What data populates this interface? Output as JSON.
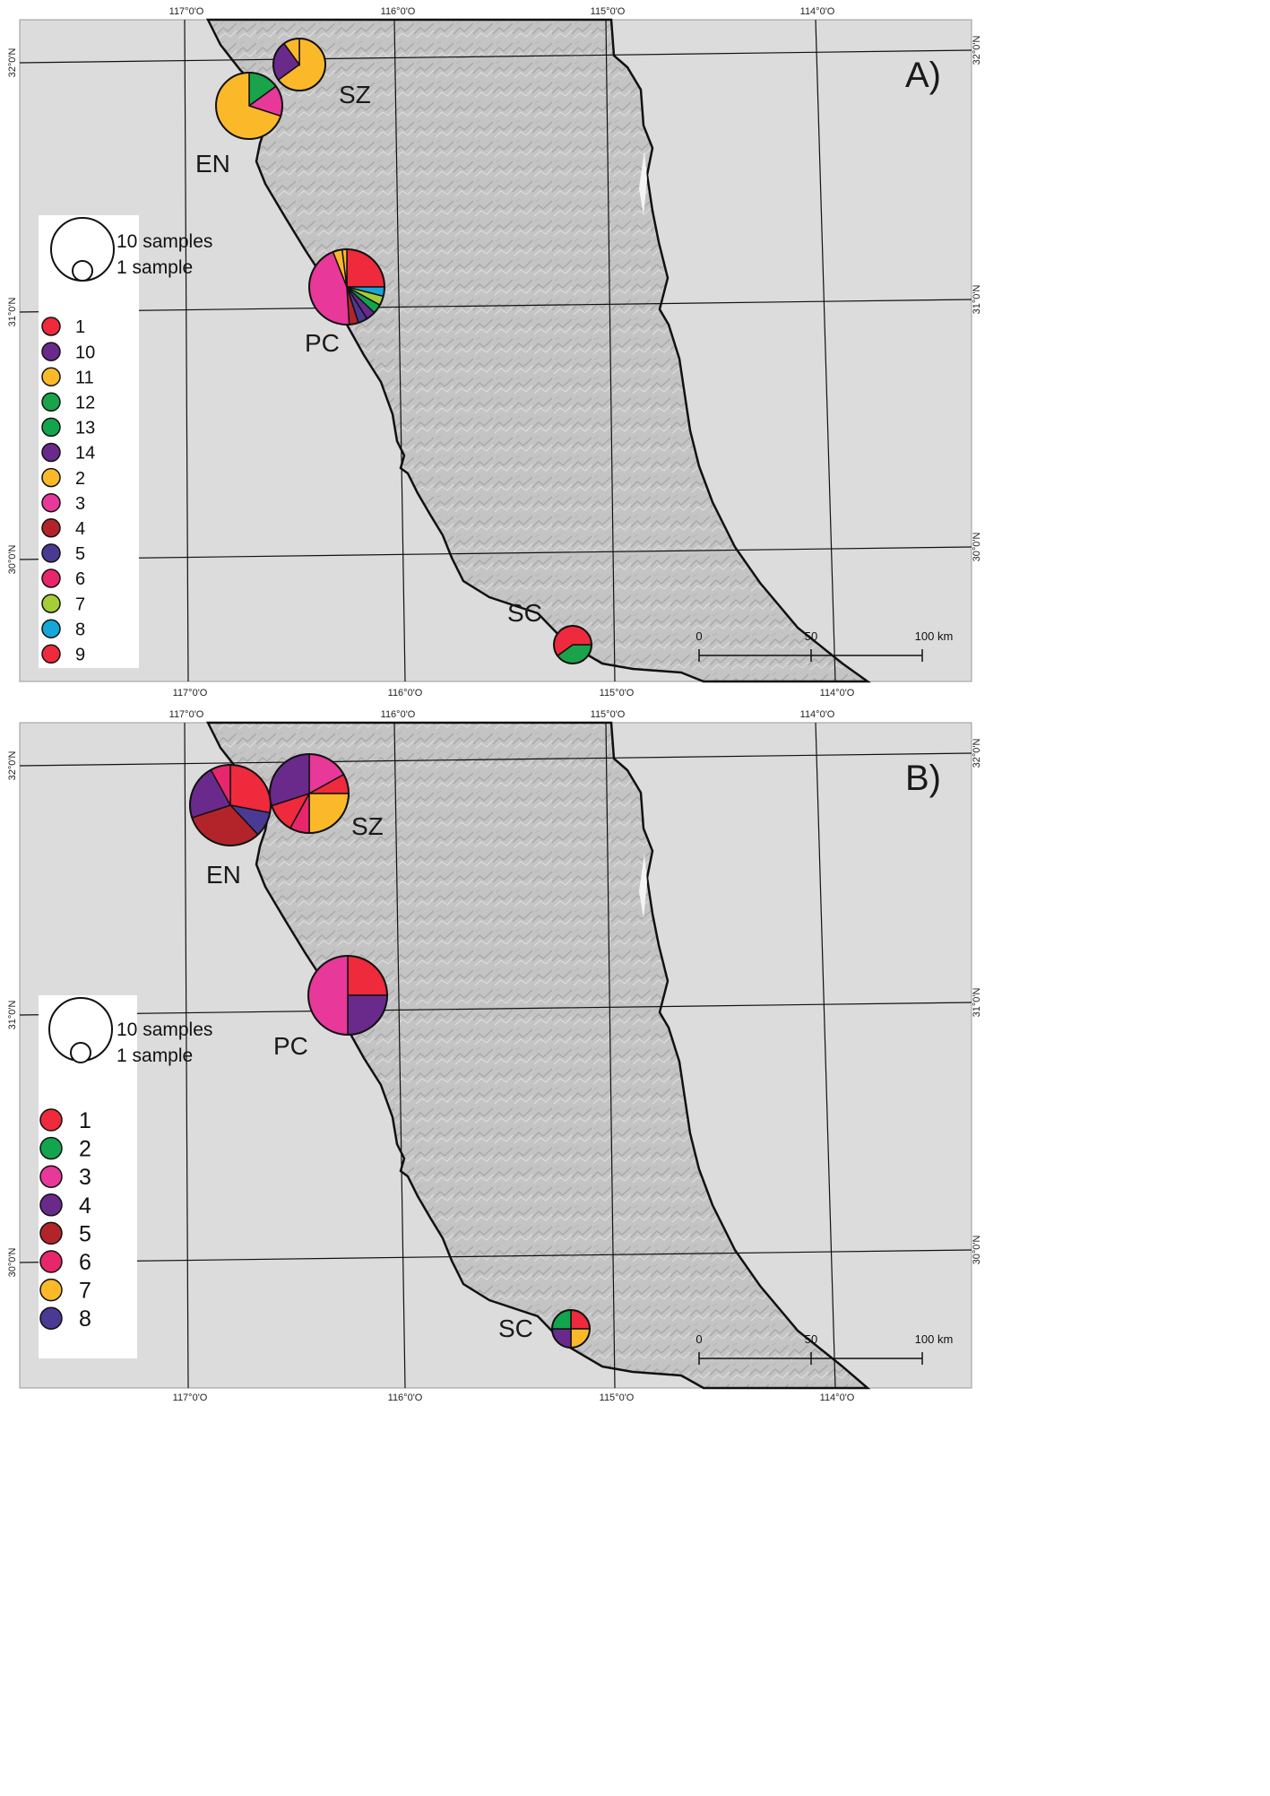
{
  "panels": [
    {
      "id": "A",
      "panel_label": "A)",
      "top_lon_labels": [
        "117°0'O",
        "116°0'O",
        "115°0'O",
        "114°0'O"
      ],
      "bottom_lon_labels": [
        "117°0'O",
        "116°0'O",
        "115°0'O",
        "114°0'O"
      ],
      "lat_labels": [
        "32°0'N",
        "31°0'N",
        "30°0'N"
      ],
      "size_legend": {
        "large": "10 samples",
        "small": "1 sample"
      },
      "legend": [
        {
          "label": "1",
          "color": "#ee2a3c"
        },
        {
          "label": "10",
          "color": "#6a2a8c"
        },
        {
          "label": "11",
          "color": "#fbb92a"
        },
        {
          "label": "12",
          "color": "#1aa34a"
        },
        {
          "label": "13",
          "color": "#12a54e"
        },
        {
          "label": "14",
          "color": "#6a2a8c"
        },
        {
          "label": "2",
          "color": "#fbb92a"
        },
        {
          "label": "3",
          "color": "#e8389a"
        },
        {
          "label": "4",
          "color": "#b2242a"
        },
        {
          "label": "5",
          "color": "#4a3a94"
        },
        {
          "label": "6",
          "color": "#e8266c"
        },
        {
          "label": "7",
          "color": "#a6cc38"
        },
        {
          "label": "8",
          "color": "#14a7d8"
        },
        {
          "label": "9",
          "color": "#ee2a3c"
        }
      ],
      "sites": [
        {
          "label": "SZ",
          "slices": [
            {
              "haplotype": "11",
              "share": 0.65
            },
            {
              "haplotype": "10",
              "share": 0.25
            },
            {
              "haplotype": "2",
              "share": 0.1
            }
          ]
        },
        {
          "label": "EN",
          "slices": [
            {
              "haplotype": "12",
              "share": 0.15
            },
            {
              "haplotype": "3",
              "share": 0.15
            },
            {
              "haplotype": "11",
              "share": 0.7
            }
          ]
        },
        {
          "label": "PC",
          "slices": [
            {
              "haplotype": "1",
              "share": 0.25
            },
            {
              "haplotype": "8",
              "share": 0.04
            },
            {
              "haplotype": "7",
              "share": 0.04
            },
            {
              "haplotype": "13",
              "share": 0.04
            },
            {
              "haplotype": "14",
              "share": 0.04
            },
            {
              "haplotype": "5",
              "share": 0.04
            },
            {
              "haplotype": "4",
              "share": 0.04
            },
            {
              "haplotype": "3",
              "share": 0.45
            },
            {
              "haplotype": "2",
              "share": 0.04
            },
            {
              "haplotype": "11",
              "share": 0.02
            }
          ]
        },
        {
          "label": "SC",
          "slices": [
            {
              "haplotype": "12",
              "share": 0.4
            },
            {
              "haplotype": "1",
              "share": 0.6
            }
          ]
        }
      ],
      "scale_bar": {
        "labels": [
          "0",
          "50",
          "100 km"
        ]
      }
    },
    {
      "id": "B",
      "panel_label": "B)",
      "top_lon_labels": [
        "117°0'O",
        "116°0'O",
        "115°0'O",
        "114°0'O"
      ],
      "bottom_lon_labels": [
        "117°0'O",
        "116°0'O",
        "115°0'O",
        "114°0'O"
      ],
      "lat_labels": [
        "32°0'N",
        "31°0'N",
        "30°0'N"
      ],
      "size_legend": {
        "large": "10 samples",
        "small": "1 sample"
      },
      "legend": [
        {
          "label": "1",
          "color": "#ee2a3c"
        },
        {
          "label": "2",
          "color": "#12a54e"
        },
        {
          "label": "3",
          "color": "#e8389a"
        },
        {
          "label": "4",
          "color": "#6a2a8c"
        },
        {
          "label": "5",
          "color": "#b2242a"
        },
        {
          "label": "6",
          "color": "#e8266c"
        },
        {
          "label": "7",
          "color": "#fbb92a"
        },
        {
          "label": "8",
          "color": "#4a3a94"
        }
      ],
      "sites": [
        {
          "label": "EN",
          "slices": [
            {
              "haplotype": "1",
              "share": 0.28
            },
            {
              "haplotype": "8",
              "share": 0.1
            },
            {
              "haplotype": "5",
              "share": 0.32
            },
            {
              "haplotype": "4",
              "share": 0.22
            },
            {
              "haplotype": "6",
              "share": 0.08
            }
          ]
        },
        {
          "label": "SZ",
          "slices": [
            {
              "haplotype": "3",
              "share": 0.17
            },
            {
              "haplotype": "1",
              "share": 0.08
            },
            {
              "haplotype": "7",
              "share": 0.25
            },
            {
              "haplotype": "6",
              "share": 0.08
            },
            {
              "haplotype": "1",
              "share": 0.12
            },
            {
              "haplotype": "4",
              "share": 0.3
            }
          ]
        },
        {
          "label": "PC",
          "slices": [
            {
              "haplotype": "1",
              "share": 0.25
            },
            {
              "haplotype": "4",
              "share": 0.25
            },
            {
              "haplotype": "3",
              "share": 0.5
            }
          ]
        },
        {
          "label": "SC",
          "slices": [
            {
              "haplotype": "1",
              "share": 0.25
            },
            {
              "haplotype": "7",
              "share": 0.25
            },
            {
              "haplotype": "4",
              "share": 0.25
            },
            {
              "haplotype": "2",
              "share": 0.25
            }
          ]
        }
      ],
      "scale_bar": {
        "labels": [
          "0",
          "50",
          "100 km"
        ]
      }
    }
  ]
}
